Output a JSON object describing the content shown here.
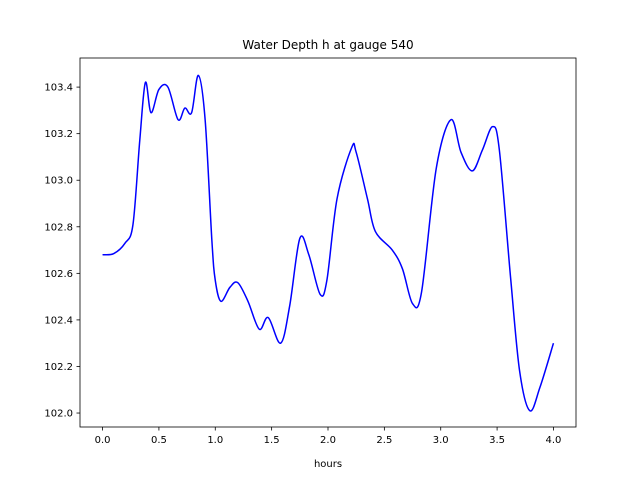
{
  "chart_data": {
    "type": "line",
    "title": "Water Depth h at gauge 540",
    "xlabel": "hours",
    "ylabel": "",
    "xlim": [
      -0.2,
      4.2
    ],
    "ylim": [
      101.94,
      103.525
    ],
    "xticks": [
      0.0,
      0.5,
      1.0,
      1.5,
      2.0,
      2.5,
      3.0,
      3.5,
      4.0
    ],
    "xtick_labels": [
      "0.0",
      "0.5",
      "1.0",
      "1.5",
      "2.0",
      "2.5",
      "3.0",
      "3.5",
      "4.0"
    ],
    "yticks": [
      102.0,
      102.2,
      102.4,
      102.6,
      102.8,
      103.0,
      103.2,
      103.4
    ],
    "ytick_labels": [
      "102.0",
      "102.2",
      "102.4",
      "102.6",
      "102.8",
      "103.0",
      "103.2",
      "103.4"
    ],
    "grid": false,
    "series": [
      {
        "name": "h",
        "color": "#0000ff",
        "x": [
          0,
          0.1,
          0.2,
          0.27,
          0.33,
          0.38,
          0.43,
          0.5,
          0.58,
          0.67,
          0.73,
          0.79,
          0.85,
          0.91,
          0.97,
          1.0,
          1.05,
          1.13,
          1.2,
          1.29,
          1.39,
          1.47,
          1.58,
          1.66,
          1.75,
          1.83,
          1.93,
          1.99,
          2.08,
          2.21,
          2.25,
          2.35,
          2.42,
          2.57,
          2.66,
          2.75,
          2.83,
          2.96,
          3.09,
          3.18,
          3.28,
          3.37,
          3.46,
          3.52,
          3.62,
          3.7,
          3.79,
          3.88,
          4.0
        ],
        "y": [
          102.68,
          102.685,
          102.73,
          102.81,
          103.17,
          103.42,
          103.29,
          103.39,
          103.4,
          103.26,
          103.31,
          103.29,
          103.45,
          103.26,
          102.74,
          102.57,
          102.48,
          102.54,
          102.56,
          102.48,
          102.36,
          102.41,
          102.3,
          102.46,
          102.75,
          102.68,
          102.51,
          102.57,
          102.92,
          103.14,
          103.12,
          102.92,
          102.78,
          102.7,
          102.62,
          102.47,
          102.52,
          103.05,
          103.26,
          103.12,
          103.04,
          103.13,
          103.23,
          103.13,
          102.58,
          102.18,
          102.01,
          102.11,
          102.3
        ]
      }
    ]
  }
}
